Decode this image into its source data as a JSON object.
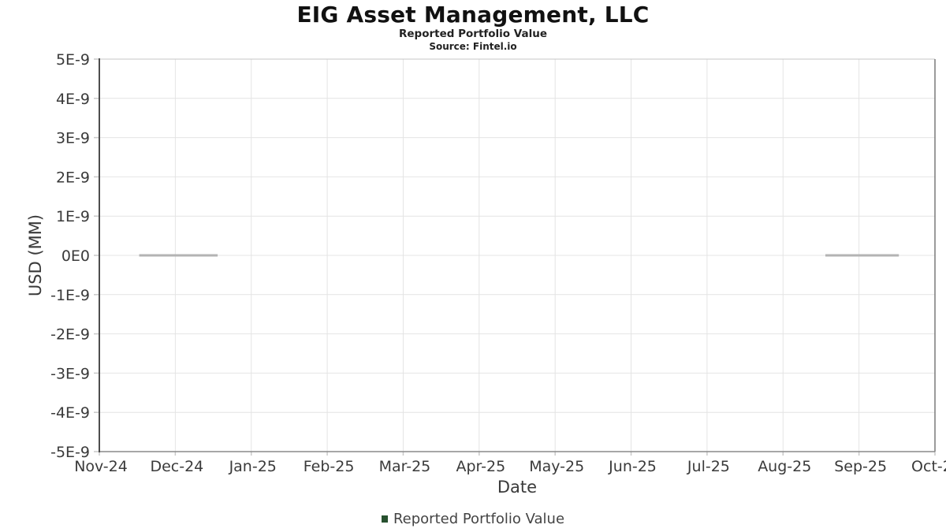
{
  "header": {
    "title": "EIG Asset Management, LLC",
    "subtitle": "Reported Portfolio Value",
    "source": "Source: Fintel.io"
  },
  "colors": {
    "grid": "#e4e4e4",
    "tick_mark": "#c9c9c9",
    "axis_left": "#4d4d4d",
    "axis_top": "#c4c4c4",
    "axis_right": "#7a7a7a",
    "axis_bottom": "#8a8a8a",
    "tick_text": "#3a3a3a",
    "series_line": "#b3b3b3",
    "legend_swatch": "#27512f"
  },
  "chart_data": {
    "type": "line",
    "title": "EIG Asset Management, LLC",
    "subtitle": "Reported Portfolio Value",
    "source": "Source: Fintel.io",
    "xlabel": "Date",
    "ylabel": "USD (MM)",
    "grid": true,
    "legend_position": "bottom-center",
    "x_tick_labels": [
      "Nov-24",
      "Dec-24",
      "Jan-25",
      "Feb-25",
      "Mar-25",
      "Apr-25",
      "May-25",
      "Jun-25",
      "Jul-25",
      "Aug-25",
      "Sep-25",
      "Oct-25"
    ],
    "y_tick_labels": [
      "5E-9",
      "4E-9",
      "3E-9",
      "2E-9",
      "1E-9",
      "0E0",
      "-1E-9",
      "-2E-9",
      "-3E-9",
      "-4E-9",
      "-5E-9"
    ],
    "y_tick_values_e9": [
      5,
      4,
      3,
      2,
      1,
      0,
      -1,
      -2,
      -3,
      -4,
      -5
    ],
    "ylim_e9": [
      -5,
      5
    ],
    "series": [
      {
        "name": "Reported Portfolio Value",
        "segments": [
          {
            "x_start": "2024-11-17",
            "x_end": "2024-12-18",
            "value_usd_mm": 0
          },
          {
            "x_start": "2025-08-18",
            "x_end": "2025-09-17",
            "value_usd_mm": 0
          }
        ]
      }
    ]
  }
}
